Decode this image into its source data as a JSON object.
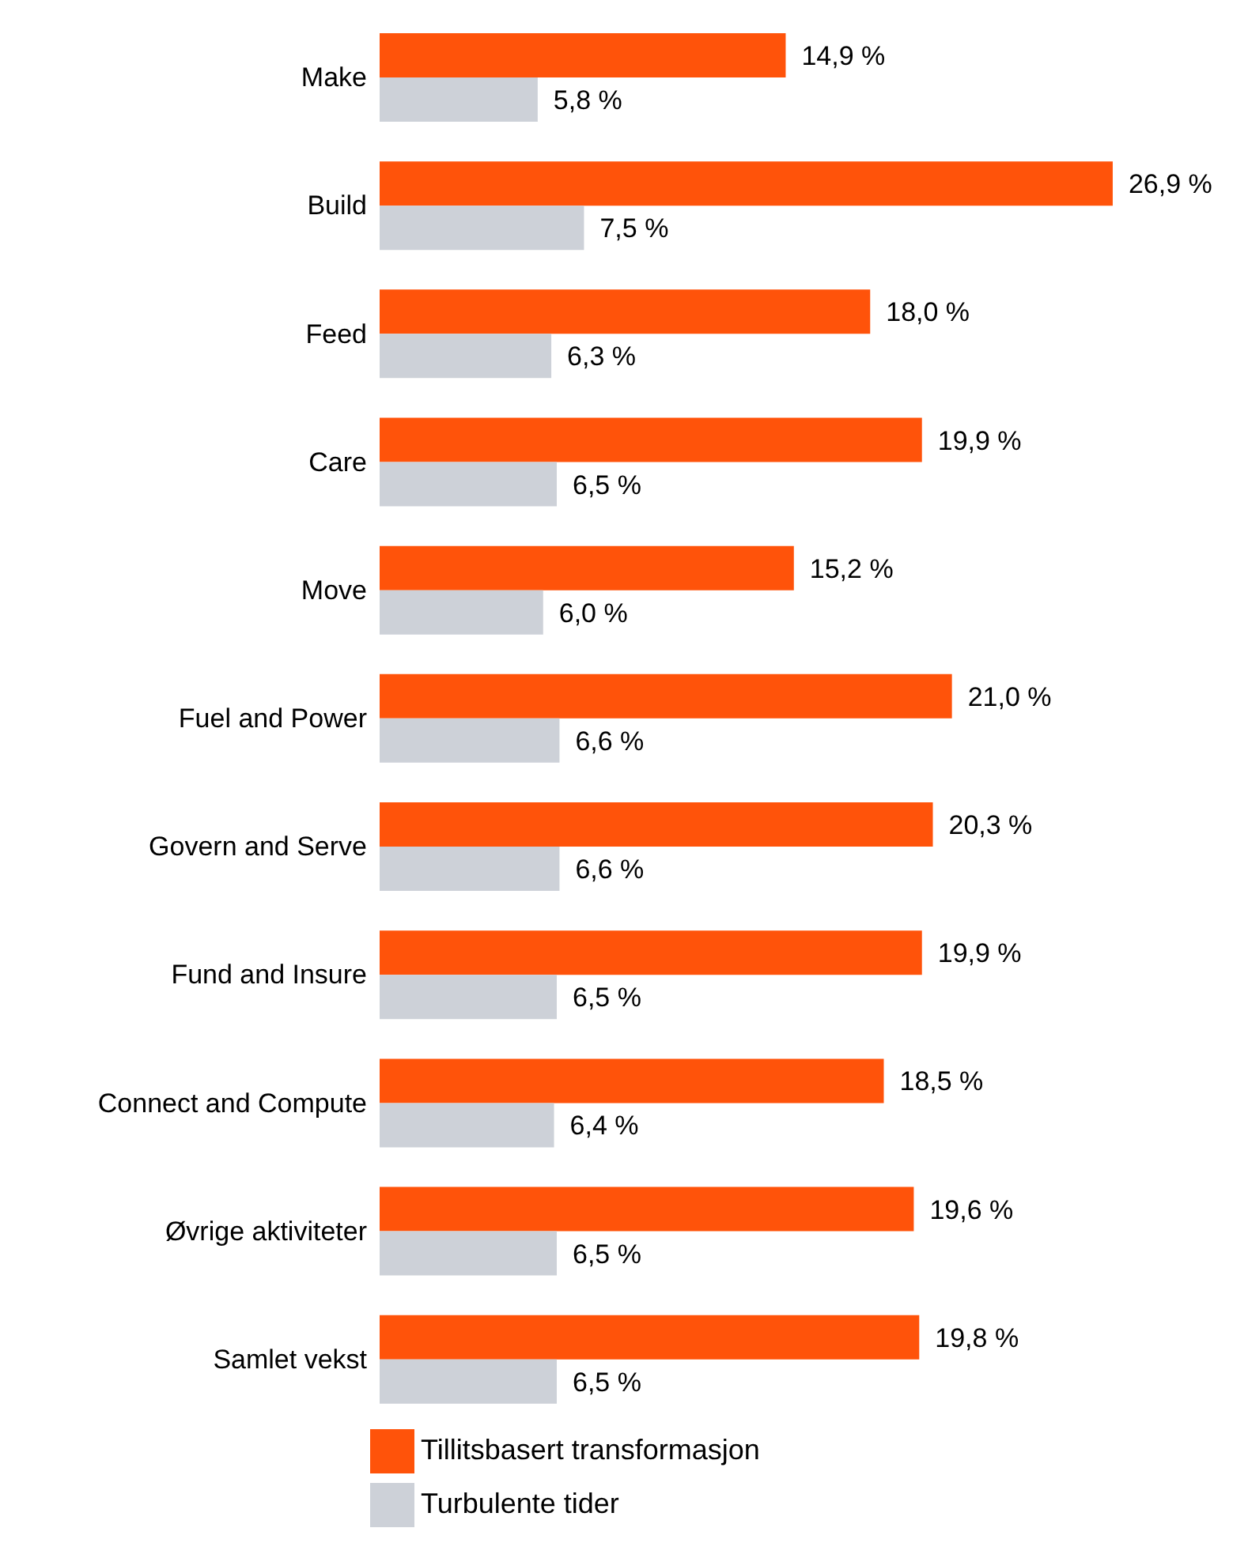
{
  "chart_data": {
    "type": "bar",
    "orientation": "horizontal",
    "categories": [
      "Make",
      "Build",
      "Feed",
      "Care",
      "Move",
      "Fuel and Power",
      "Govern and Serve",
      "Fund and Insure",
      "Connect and Compute",
      "Øvrige aktiviteter",
      "Samlet vekst"
    ],
    "series": [
      {
        "name": "Tillitsbasert transformasjon",
        "color": "#ff530a",
        "values": [
          14.9,
          26.9,
          18.0,
          19.9,
          15.2,
          21.0,
          20.3,
          19.9,
          18.5,
          19.6,
          19.8
        ],
        "value_labels": [
          "14,9 %",
          "26,9 %",
          "18,0 %",
          "19,9 %",
          "15,2 %",
          "21,0 %",
          "20,3 %",
          "19,9 %",
          "18,5 %",
          "19,6 %",
          "19,8 %"
        ]
      },
      {
        "name": "Turbulente tider",
        "color": "#cdd1d8",
        "values": [
          5.8,
          7.5,
          6.3,
          6.5,
          6.0,
          6.6,
          6.6,
          6.5,
          6.4,
          6.5,
          6.5
        ],
        "value_labels": [
          "5,8 %",
          "7,5 %",
          "6,3 %",
          "6,5 %",
          "6,0 %",
          "6,6 %",
          "6,6 %",
          "6,5 %",
          "6,4 %",
          "6,5 %",
          "6,5 %"
        ]
      }
    ],
    "grid": false,
    "legend": "bottom"
  }
}
